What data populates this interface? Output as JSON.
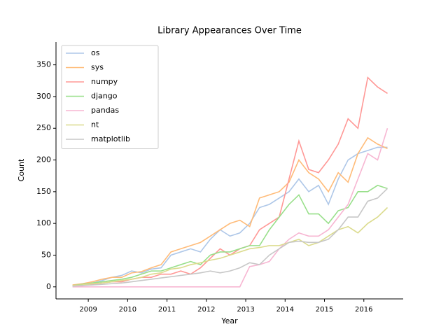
{
  "chart_data": {
    "type": "line",
    "title": "Library Appearances Over Time",
    "x_label": "Year",
    "y_label": "Count",
    "x": [
      2008.6,
      2008.85,
      2009.1,
      2009.35,
      2009.6,
      2009.85,
      2010.1,
      2010.35,
      2010.6,
      2010.85,
      2011.1,
      2011.35,
      2011.6,
      2011.85,
      2012.1,
      2012.35,
      2012.6,
      2012.85,
      2013.1,
      2013.35,
      2013.6,
      2013.85,
      2014.1,
      2014.35,
      2014.6,
      2014.85,
      2015.1,
      2015.35,
      2015.6,
      2015.85,
      2016.1,
      2016.35,
      2016.6
    ],
    "series": [
      {
        "name": "os",
        "color": "#aec7e8",
        "values": [
          2,
          4,
          6,
          10,
          15,
          18,
          25,
          22,
          28,
          30,
          50,
          55,
          60,
          55,
          75,
          90,
          80,
          85,
          100,
          125,
          130,
          140,
          150,
          170,
          150,
          160,
          130,
          170,
          200,
          210,
          215,
          220,
          220
        ]
      },
      {
        "name": "sys",
        "color": "#ffbb78",
        "values": [
          3,
          5,
          8,
          12,
          15,
          15,
          22,
          24,
          30,
          35,
          55,
          60,
          65,
          70,
          80,
          90,
          100,
          105,
          95,
          140,
          145,
          150,
          165,
          200,
          180,
          170,
          150,
          180,
          165,
          210,
          235,
          225,
          218
        ]
      },
      {
        "name": "numpy",
        "color": "#ff9896",
        "values": [
          1,
          2,
          4,
          6,
          8,
          8,
          12,
          15,
          15,
          20,
          20,
          25,
          20,
          30,
          45,
          60,
          50,
          60,
          65,
          90,
          100,
          110,
          170,
          230,
          185,
          180,
          200,
          225,
          265,
          250,
          330,
          315,
          305
        ]
      },
      {
        "name": "django",
        "color": "#98df8a",
        "values": [
          2,
          4,
          6,
          8,
          10,
          12,
          15,
          20,
          25,
          25,
          30,
          35,
          40,
          35,
          50,
          55,
          55,
          60,
          65,
          65,
          90,
          110,
          130,
          145,
          115,
          115,
          100,
          120,
          125,
          150,
          150,
          160,
          155
        ]
      },
      {
        "name": "pandas",
        "color": "#f7b6d2",
        "values": [
          0,
          0,
          0,
          0,
          0,
          0,
          0,
          0,
          0,
          0,
          0,
          0,
          0,
          0,
          0,
          0,
          0,
          0,
          32,
          35,
          40,
          60,
          75,
          85,
          80,
          80,
          90,
          110,
          130,
          170,
          210,
          200,
          250
        ]
      },
      {
        "name": "nt",
        "color": "#dbdb8d",
        "values": [
          2,
          3,
          5,
          6,
          8,
          10,
          12,
          15,
          20,
          22,
          28,
          30,
          35,
          38,
          42,
          45,
          50,
          55,
          60,
          62,
          65,
          65,
          70,
          75,
          65,
          70,
          80,
          90,
          95,
          85,
          100,
          110,
          125
        ]
      },
      {
        "name": "matplotlib",
        "color": "#c7c7c7",
        "values": [
          1,
          2,
          3,
          4,
          5,
          6,
          8,
          10,
          12,
          14,
          16,
          18,
          20,
          22,
          25,
          22,
          25,
          30,
          38,
          35,
          50,
          60,
          70,
          72,
          70,
          70,
          75,
          90,
          110,
          110,
          135,
          140,
          155
        ]
      }
    ],
    "xlim": [
      2008.18,
      2017.0
    ],
    "xticks": [
      2009,
      2010,
      2011,
      2012,
      2013,
      2014,
      2015,
      2016
    ],
    "ylim": [
      -19,
      386
    ],
    "yticks": [
      0,
      50,
      100,
      150,
      200,
      250,
      300,
      350
    ],
    "legend": "upper left"
  }
}
